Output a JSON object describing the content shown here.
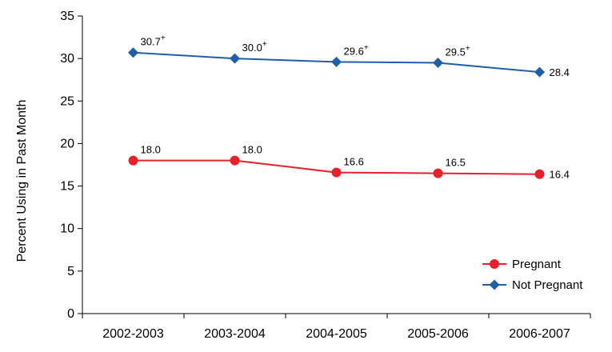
{
  "chart_data": {
    "type": "line",
    "categories": [
      "2002-2003",
      "2003-2004",
      "2004-2005",
      "2005-2006",
      "2006-2007"
    ],
    "ylabel": "Percent Using in Past Month",
    "xlabel": "",
    "ylim": [
      0,
      35
    ],
    "yticks": [
      0,
      5,
      10,
      15,
      20,
      25,
      30,
      35
    ],
    "grid": false,
    "legend_position": "bottom-right",
    "series": [
      {
        "name": "Pregnant",
        "values": [
          18.0,
          18.0,
          16.6,
          16.5,
          16.4
        ],
        "labels": [
          "18.0",
          "18.0",
          "16.6",
          "16.5",
          "16.4"
        ],
        "superscripts": [
          "",
          "",
          "",
          "",
          ""
        ],
        "color": "#e8202a",
        "marker": "circle"
      },
      {
        "name": "Not Pregnant",
        "values": [
          30.7,
          30.0,
          29.6,
          29.5,
          28.4
        ],
        "labels": [
          "30.7",
          "30.0",
          "29.6",
          "29.5",
          "28.4"
        ],
        "superscripts": [
          "+",
          "+",
          "+",
          "+",
          ""
        ],
        "color": "#1f5fa8",
        "marker": "diamond"
      }
    ]
  }
}
